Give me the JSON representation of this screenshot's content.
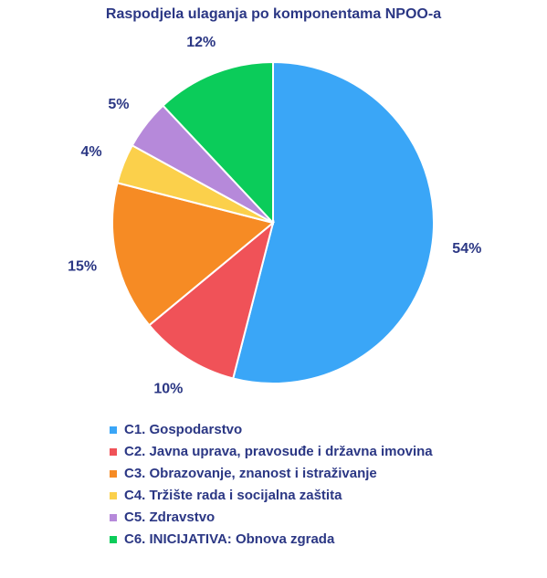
{
  "chart_data": {
    "type": "pie",
    "title": "Raspodjela ulaganja po komponentama NPOO-a",
    "slices": [
      {
        "label": "C1. Gospodarstvo",
        "value": 54,
        "value_label": "54%",
        "color": "#3aa6f7"
      },
      {
        "label": "C2. Javna uprava, pravosuđe i državna imovina",
        "value": 10,
        "value_label": "10%",
        "color": "#f05258"
      },
      {
        "label": "C3. Obrazovanje, znanost i istraživanje",
        "value": 15,
        "value_label": "15%",
        "color": "#f68b24"
      },
      {
        "label": "C4. Tržište rada i socijalna zaštita",
        "value": 4,
        "value_label": "4%",
        "color": "#fbd04b"
      },
      {
        "label": "C5. Zdravstvo",
        "value": 5,
        "value_label": "5%",
        "color": "#b689da"
      },
      {
        "label": "C6. INICIJATIVA: Obnova zgrada",
        "value": 12,
        "value_label": "12%",
        "color": "#0bcc5a"
      }
    ],
    "legend_position": "bottom"
  }
}
